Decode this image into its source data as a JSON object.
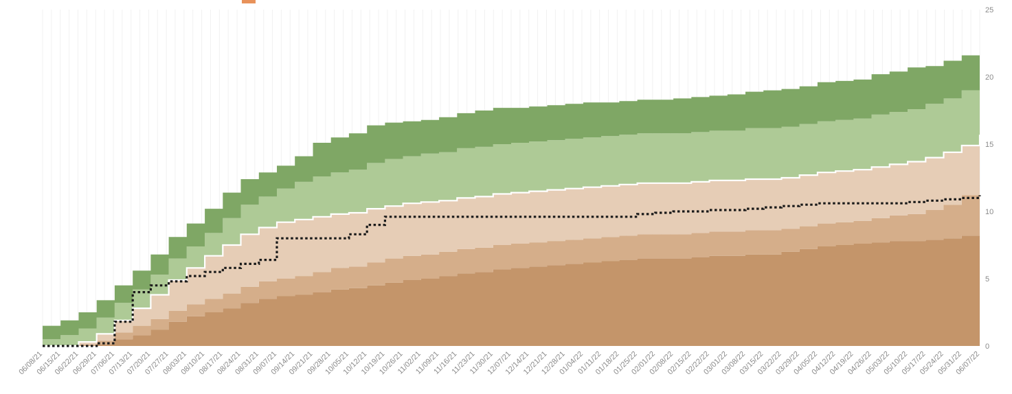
{
  "chart_data": {
    "type": "area",
    "stacked": true,
    "title": "",
    "xlabel": "",
    "ylabel": "",
    "ylim": [
      0,
      25
    ],
    "y_axis_side": "right",
    "y_ticks": [
      "0",
      "5",
      "10",
      "15",
      "20",
      "25"
    ],
    "grid": "vertical",
    "legend": "top (partially visible, labels illegible)",
    "colors": [
      "#c4956a",
      "#d5ae8a",
      "#e6cdb6",
      "#aeca96",
      "#7fa765"
    ],
    "boundary_line_color": "#ffffff",
    "reference_line_color": "#1a1a1a",
    "x": [
      "06/08/21",
      "06/15/21",
      "06/22/21",
      "06/29/21",
      "07/06/21",
      "07/13/21",
      "07/20/21",
      "07/27/21",
      "08/03/21",
      "08/10/21",
      "08/17/21",
      "08/24/21",
      "08/31/21",
      "09/07/21",
      "09/14/21",
      "09/21/21",
      "09/28/21",
      "10/05/21",
      "10/12/21",
      "10/19/21",
      "10/26/21",
      "11/02/21",
      "11/09/21",
      "11/16/21",
      "11/23/21",
      "11/30/21",
      "12/07/21",
      "12/14/21",
      "12/21/21",
      "12/28/21",
      "01/04/22",
      "01/11/22",
      "01/18/22",
      "01/25/22",
      "02/01/22",
      "02/08/22",
      "02/15/22",
      "02/22/22",
      "03/01/22",
      "03/08/22",
      "03/15/22",
      "03/22/22",
      "03/29/22",
      "04/05/22",
      "04/12/22",
      "04/19/22",
      "04/26/22",
      "05/03/22",
      "05/10/22",
      "05/17/22",
      "05/24/22",
      "05/31/22",
      "06/07/22"
    ],
    "series": [
      {
        "values": [
          0,
          0,
          0,
          0.1,
          0.5,
          0.8,
          1.2,
          1.8,
          2.2,
          2.5,
          2.8,
          3.2,
          3.5,
          3.7,
          3.8,
          4.0,
          4.2,
          4.3,
          4.5,
          4.7,
          4.9,
          5.0,
          5.2,
          5.4,
          5.5,
          5.7,
          5.8,
          5.9,
          6.0,
          6.1,
          6.2,
          6.3,
          6.4,
          6.5,
          6.5,
          6.5,
          6.6,
          6.7,
          6.7,
          6.8,
          6.8,
          7.0,
          7.2,
          7.4,
          7.5,
          7.6,
          7.7,
          7.8,
          7.8,
          7.9,
          8.0,
          8.2,
          8.5
        ]
      },
      {
        "values": [
          0,
          0,
          0.1,
          0.3,
          0.5,
          0.7,
          0.8,
          0.8,
          0.9,
          1.0,
          1.1,
          1.2,
          1.3,
          1.3,
          1.4,
          1.5,
          1.6,
          1.6,
          1.7,
          1.8,
          1.8,
          1.8,
          1.8,
          1.8,
          1.8,
          1.8,
          1.8,
          1.8,
          1.8,
          1.8,
          1.8,
          1.8,
          1.8,
          1.8,
          1.8,
          1.8,
          1.8,
          1.8,
          1.8,
          1.8,
          1.8,
          1.7,
          1.7,
          1.7,
          1.7,
          1.7,
          1.8,
          1.9,
          2.0,
          2.2,
          2.5,
          3.0,
          3.6
        ]
      },
      {
        "values": [
          0,
          0,
          0.2,
          0.5,
          0.9,
          1.3,
          1.8,
          2.3,
          2.7,
          3.2,
          3.6,
          3.9,
          4.0,
          4.2,
          4.2,
          4.1,
          4.0,
          4.0,
          4.0,
          3.9,
          3.9,
          3.9,
          3.8,
          3.8,
          3.8,
          3.8,
          3.8,
          3.8,
          3.8,
          3.8,
          3.8,
          3.8,
          3.8,
          3.8,
          3.8,
          3.8,
          3.8,
          3.8,
          3.8,
          3.8,
          3.8,
          3.8,
          3.8,
          3.8,
          3.8,
          3.8,
          3.8,
          3.8,
          3.9,
          3.9,
          3.9,
          3.7,
          3.6
        ]
      },
      {
        "values": [
          0.5,
          0.8,
          1.0,
          1.2,
          1.3,
          1.4,
          1.5,
          1.6,
          1.6,
          1.7,
          2.0,
          2.2,
          2.3,
          2.5,
          2.8,
          3.0,
          3.1,
          3.2,
          3.4,
          3.5,
          3.5,
          3.6,
          3.6,
          3.7,
          3.7,
          3.7,
          3.7,
          3.7,
          3.7,
          3.7,
          3.7,
          3.7,
          3.7,
          3.7,
          3.7,
          3.7,
          3.7,
          3.7,
          3.7,
          3.8,
          3.8,
          3.8,
          3.8,
          3.8,
          3.8,
          3.8,
          3.9,
          3.9,
          3.9,
          4.0,
          4.0,
          4.1,
          4.2
        ]
      },
      {
        "values": [
          1.0,
          1.1,
          1.2,
          1.3,
          1.3,
          1.4,
          1.5,
          1.6,
          1.7,
          1.8,
          1.9,
          1.9,
          1.8,
          1.7,
          1.9,
          2.5,
          2.6,
          2.7,
          2.8,
          2.7,
          2.6,
          2.5,
          2.6,
          2.6,
          2.7,
          2.7,
          2.6,
          2.6,
          2.6,
          2.6,
          2.6,
          2.5,
          2.5,
          2.5,
          2.5,
          2.6,
          2.6,
          2.6,
          2.7,
          2.7,
          2.8,
          2.8,
          2.8,
          2.9,
          2.9,
          2.9,
          3.0,
          3.0,
          3.1,
          2.8,
          2.8,
          2.6,
          3.0
        ]
      }
    ],
    "reference_line": {
      "style": "dotted",
      "values": [
        0,
        0,
        0,
        0.2,
        1.8,
        4.0,
        4.5,
        4.8,
        5.2,
        5.5,
        5.8,
        6.1,
        6.4,
        8.0,
        8.0,
        8.0,
        8.0,
        8.3,
        9.0,
        9.6,
        9.6,
        9.6,
        9.6,
        9.6,
        9.6,
        9.6,
        9.6,
        9.6,
        9.6,
        9.6,
        9.6,
        9.6,
        9.6,
        9.8,
        9.9,
        10.0,
        10.0,
        10.1,
        10.1,
        10.2,
        10.3,
        10.4,
        10.5,
        10.6,
        10.6,
        10.6,
        10.6,
        10.6,
        10.7,
        10.8,
        10.9,
        11.0,
        11.2
      ]
    }
  }
}
